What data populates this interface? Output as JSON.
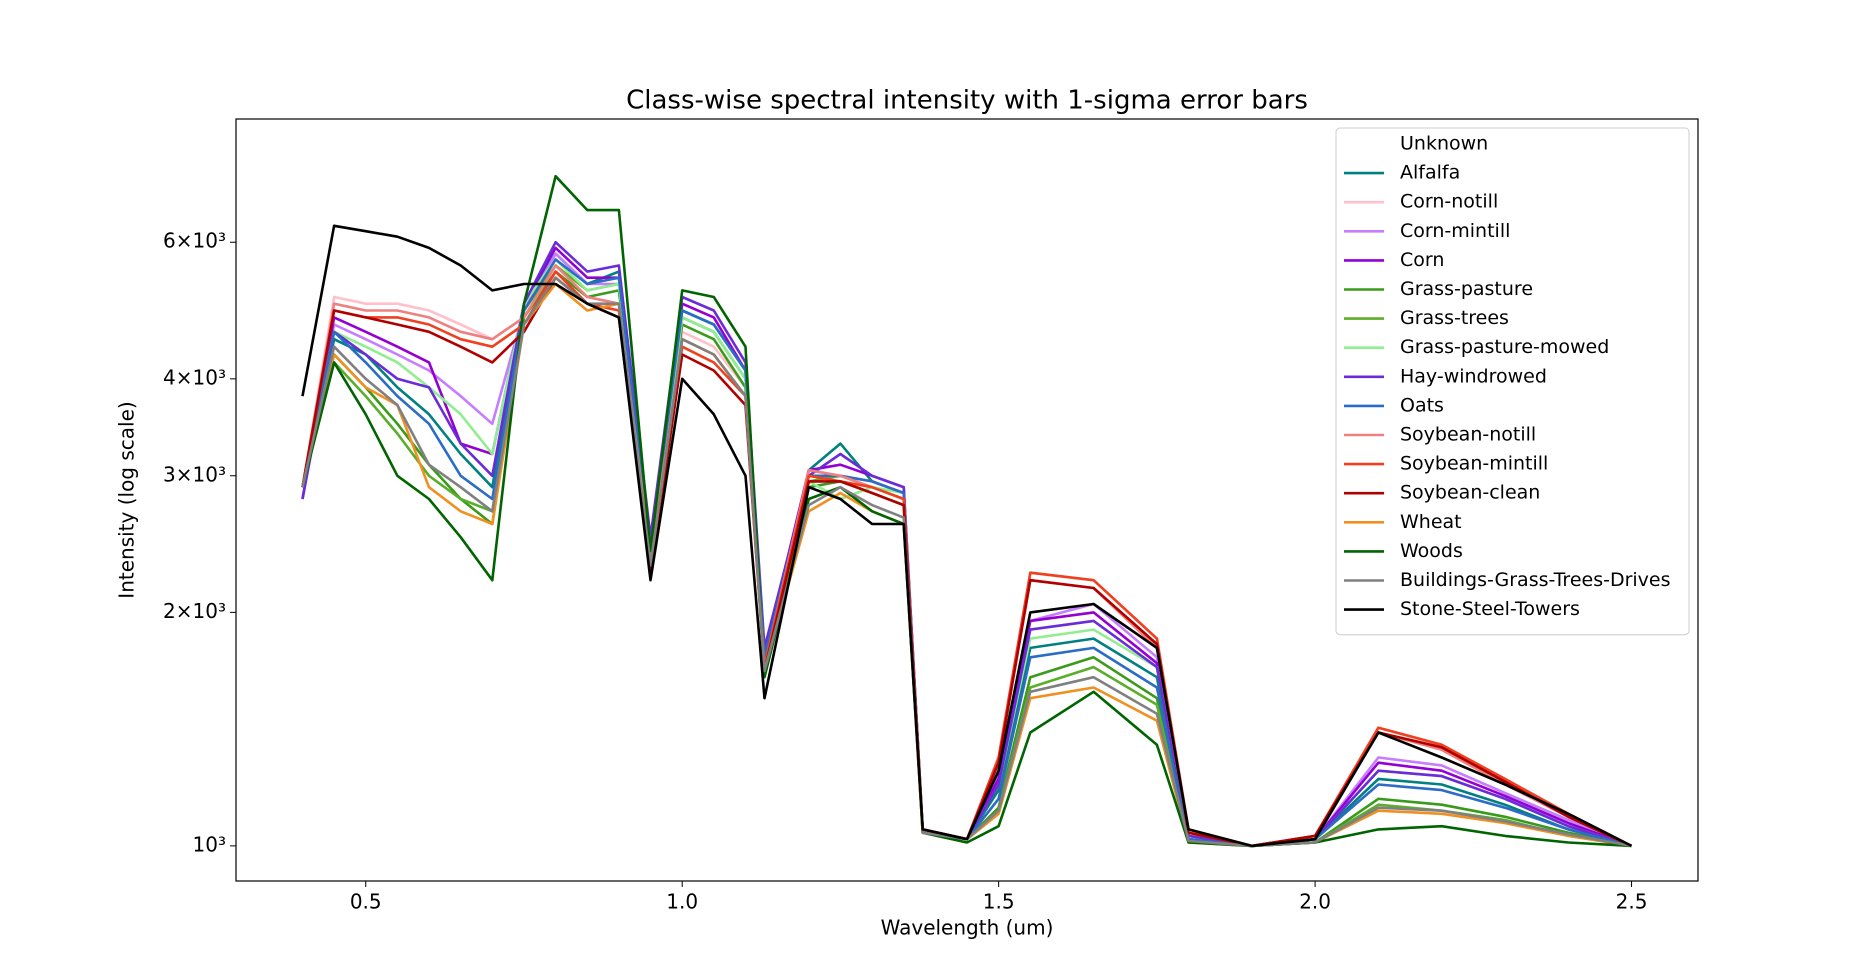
{
  "chart_data": {
    "type": "line",
    "title": "Class-wise spectral intensity with 1-sigma error bars",
    "x_label": "Wavelength (um)",
    "y_label": "Intensity (log scale)",
    "log_y": true,
    "legend": "upper right",
    "x": [
      0.4,
      0.45,
      0.5,
      0.55,
      0.6,
      0.65,
      0.7,
      0.75,
      0.8,
      0.85,
      0.9,
      0.95,
      1.0,
      1.05,
      1.1,
      1.13,
      1.2,
      1.25,
      1.3,
      1.35,
      1.38,
      1.45,
      1.5,
      1.55,
      1.65,
      1.75,
      1.8,
      1.9,
      2.0,
      2.1,
      2.2,
      2.3,
      2.4,
      2.5
    ],
    "xlim": [
      0.295,
      2.605
    ],
    "xticks": [
      0.5,
      {
        "value": 1,
        "label": "1.0"
      },
      1.5,
      {
        "value": 2,
        "label": "2.0"
      },
      2.5
    ],
    "ylim": [
      901,
      8650
    ],
    "yticks": [
      {
        "value": 1000,
        "label": "10³"
      },
      {
        "value": 2000,
        "label": "2×10³"
      },
      {
        "value": 3000,
        "label": "3×10³"
      },
      {
        "value": 4000,
        "label": "4×10³"
      },
      {
        "value": 6000,
        "label": "6×10³"
      }
    ],
    "series": [
      {
        "name": "Unknown",
        "color": "#ffffff",
        "values": [
          null,
          null,
          null,
          null,
          null,
          null,
          null,
          null,
          null,
          null,
          null,
          null,
          null,
          null,
          null,
          null,
          null,
          null,
          null,
          null,
          null,
          null,
          null,
          null,
          null,
          null,
          null,
          null,
          null,
          null,
          null,
          null,
          null,
          null
        ]
      },
      {
        "name": "Alfalfa",
        "color": "#008080",
        "values": [
          2900,
          4500,
          4300,
          3900,
          3600,
          3200,
          2900,
          5000,
          5800,
          5300,
          5500,
          2450,
          4900,
          4700,
          4100,
          1750,
          3050,
          3300,
          2950,
          2850,
          1050,
          1020,
          1180,
          1800,
          1850,
          1650,
          1020,
          1000,
          1020,
          1220,
          1200,
          1130,
          1050,
          1000
        ]
      },
      {
        "name": "Corn-notill",
        "color": "#ffc0cb",
        "values": [
          2900,
          5100,
          5000,
          5000,
          4900,
          4700,
          4500,
          4800,
          5600,
          5100,
          5000,
          2350,
          4600,
          4400,
          3900,
          1720,
          3050,
          3000,
          2950,
          2850,
          1050,
          1020,
          1290,
          2250,
          2200,
          1850,
          1050,
          1000,
          1030,
          1420,
          1350,
          1220,
          1100,
          1000
        ]
      },
      {
        "name": "Corn-mintill",
        "color": "#c77dff",
        "values": [
          2900,
          4700,
          4500,
          4300,
          4100,
          3800,
          3500,
          4900,
          5800,
          5300,
          5300,
          2400,
          4800,
          4600,
          4000,
          1750,
          3000,
          3000,
          2950,
          2850,
          1050,
          1020,
          1230,
          1950,
          2050,
          1750,
          1030,
          1000,
          1020,
          1300,
          1270,
          1170,
          1080,
          1000
        ]
      },
      {
        "name": "Corn",
        "color": "#9400d3",
        "values": [
          2800,
          4800,
          4600,
          4400,
          4200,
          3300,
          3200,
          5000,
          5900,
          5400,
          5400,
          2450,
          5000,
          4800,
          4100,
          1770,
          3050,
          3100,
          3000,
          2900,
          1050,
          1020,
          1220,
          1950,
          2000,
          1720,
          1030,
          1000,
          1020,
          1280,
          1250,
          1160,
          1070,
          1000
        ]
      },
      {
        "name": "Grass-pasture",
        "color": "#3a9a1a",
        "values": [
          2900,
          4300,
          3900,
          3500,
          3100,
          2800,
          2600,
          4800,
          5500,
          5100,
          5200,
          2350,
          4700,
          4500,
          3900,
          1700,
          2900,
          2950,
          2850,
          2750,
          1040,
          1020,
          1120,
          1650,
          1750,
          1550,
          1020,
          1000,
          1010,
          1150,
          1130,
          1090,
          1040,
          1000
        ]
      },
      {
        "name": "Grass-trees",
        "color": "#5aae2a",
        "values": [
          2900,
          4200,
          3800,
          3400,
          3000,
          2800,
          2700,
          4900,
          5600,
          5200,
          5300,
          2350,
          4800,
          4600,
          4000,
          1700,
          2950,
          3000,
          2900,
          2800,
          1040,
          1020,
          1110,
          1600,
          1700,
          1520,
          1020,
          1000,
          1010,
          1130,
          1110,
          1080,
          1030,
          1000
        ]
      },
      {
        "name": "Grass-pasture-mowed",
        "color": "#90ee90",
        "values": [
          2900,
          4600,
          4400,
          4200,
          3900,
          3600,
          3200,
          5000,
          5700,
          5200,
          5300,
          2400,
          4800,
          4600,
          4000,
          1750,
          2950,
          2800,
          2900,
          2850,
          1050,
          1020,
          1200,
          1850,
          1900,
          1700,
          1030,
          1000,
          1020,
          1250,
          1230,
          1150,
          1060,
          1000
        ]
      },
      {
        "name": "Hay-windrowed",
        "color": "#6a2bd9",
        "values": [
          2800,
          4600,
          4300,
          4000,
          3900,
          3300,
          3000,
          5000,
          6000,
          5500,
          5600,
          2500,
          5100,
          4900,
          4200,
          1800,
          3000,
          3200,
          3000,
          2900,
          1050,
          1020,
          1200,
          1900,
          1950,
          1700,
          1030,
          1000,
          1020,
          1250,
          1230,
          1150,
          1060,
          1000
        ]
      },
      {
        "name": "Oats",
        "color": "#2b6cc4",
        "values": [
          2900,
          4600,
          4200,
          3800,
          3500,
          3000,
          2800,
          4900,
          5700,
          5300,
          5400,
          2400,
          4900,
          4700,
          4100,
          1750,
          3000,
          3000,
          2950,
          2850,
          1050,
          1020,
          1150,
          1750,
          1800,
          1600,
          1020,
          1000,
          1020,
          1200,
          1180,
          1120,
          1050,
          1000
        ]
      },
      {
        "name": "Soybean-notill",
        "color": "#f08080",
        "values": [
          2900,
          5000,
          4900,
          4900,
          4800,
          4600,
          4500,
          4800,
          5600,
          5100,
          5000,
          2350,
          4500,
          4300,
          3800,
          1700,
          3050,
          3000,
          2900,
          2800,
          1050,
          1020,
          1290,
          2200,
          2150,
          1800,
          1040,
          1000,
          1030,
          1400,
          1330,
          1200,
          1090,
          1000
        ]
      },
      {
        "name": "Soybean-mintill",
        "color": "#f04020",
        "values": [
          2900,
          4900,
          4800,
          4800,
          4700,
          4500,
          4400,
          4700,
          5500,
          5000,
          4900,
          2300,
          4400,
          4200,
          3800,
          1700,
          3000,
          2950,
          2900,
          2800,
          1050,
          1020,
          1300,
          2250,
          2200,
          1850,
          1050,
          1000,
          1030,
          1420,
          1350,
          1220,
          1100,
          1000
        ]
      },
      {
        "name": "Soybean-clean",
        "color": "#b00000",
        "values": [
          2900,
          4900,
          4800,
          4700,
          4600,
          4400,
          4200,
          4600,
          5400,
          5000,
          4800,
          2250,
          4300,
          4100,
          3700,
          1680,
          2950,
          2950,
          2850,
          2750,
          1050,
          1020,
          1280,
          2200,
          2150,
          1820,
          1040,
          1000,
          1030,
          1400,
          1340,
          1210,
          1090,
          1000
        ]
      },
      {
        "name": "Wheat",
        "color": "#f09020",
        "values": [
          2900,
          4300,
          3900,
          3700,
          2900,
          2700,
          2600,
          4700,
          5300,
          4900,
          5000,
          2300,
          4500,
          4300,
          3800,
          1680,
          2700,
          2850,
          2700,
          2600,
          1040,
          1020,
          1100,
          1550,
          1600,
          1450,
          1010,
          1000,
          1010,
          1110,
          1100,
          1070,
          1030,
          1000
        ]
      },
      {
        "name": "Woods",
        "color": "#006400",
        "values": [
          2900,
          4200,
          3600,
          3000,
          2800,
          2500,
          2200,
          5000,
          7300,
          6600,
          6600,
          2400,
          5200,
          5100,
          4400,
          1650,
          2800,
          2900,
          2700,
          2600,
          1040,
          1010,
          1060,
          1400,
          1580,
          1350,
          1010,
          1000,
          1010,
          1050,
          1060,
          1030,
          1010,
          1000
        ]
      },
      {
        "name": "Buildings-Grass-Trees-Drives",
        "color": "#808080",
        "values": [
          2900,
          4400,
          4000,
          3700,
          3100,
          2900,
          2700,
          4700,
          5400,
          5000,
          5000,
          2300,
          4500,
          4300,
          3800,
          1680,
          2750,
          2900,
          2750,
          2650,
          1040,
          1020,
          1110,
          1580,
          1650,
          1480,
          1015,
          1000,
          1010,
          1120,
          1110,
          1075,
          1035,
          1000
        ]
      },
      {
        "name": "Stone-Steel-Towers",
        "color": "#000000",
        "values": [
          3800,
          6300,
          6200,
          6100,
          5900,
          5600,
          5200,
          5300,
          5300,
          5000,
          4800,
          2200,
          4000,
          3600,
          3000,
          1550,
          2900,
          2800,
          2600,
          2600,
          1050,
          1020,
          1250,
          2000,
          2050,
          1800,
          1050,
          1000,
          1020,
          1400,
          1300,
          1200,
          1100,
          1000
        ]
      }
    ]
  }
}
